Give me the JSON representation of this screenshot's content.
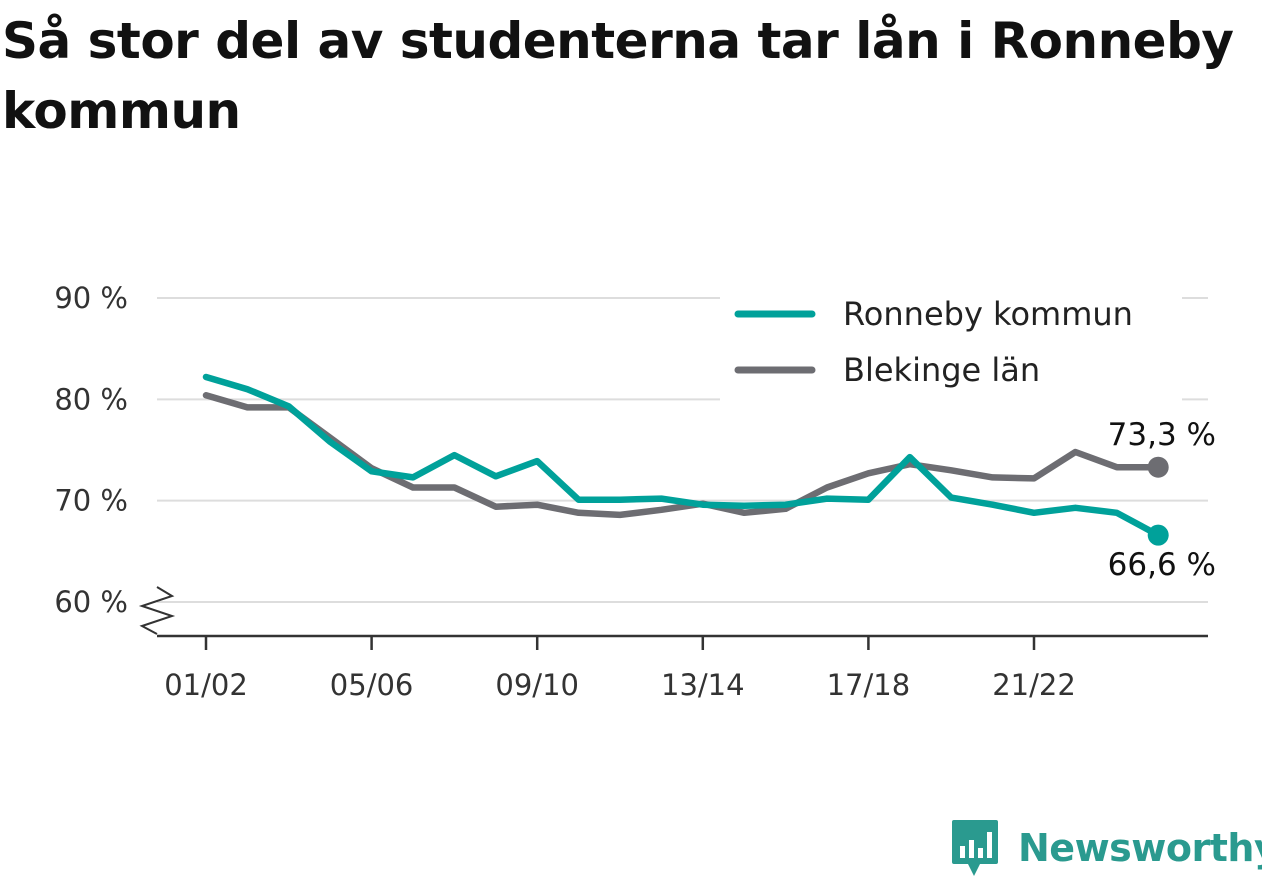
{
  "title": "Så stor del av studenterna tar lån i Ronneby kommun",
  "brand": {
    "name": "Newsworthy",
    "icon": "chart-bubble-icon",
    "color": "#2a9a8f"
  },
  "chart_data": {
    "type": "line",
    "x": [
      "01/02",
      "02/03",
      "03/04",
      "04/05",
      "05/06",
      "06/07",
      "07/08",
      "08/09",
      "09/10",
      "10/11",
      "11/12",
      "12/13",
      "13/14",
      "14/15",
      "15/16",
      "16/17",
      "17/18",
      "18/19",
      "19/20",
      "20/21",
      "21/22",
      "22/23",
      "23/24",
      "24/25"
    ],
    "x_ticks": [
      "01/02",
      "05/06",
      "09/10",
      "13/14",
      "17/18",
      "21/22"
    ],
    "y_ticks": [
      {
        "value": 60,
        "label": "60 %"
      },
      {
        "value": 70,
        "label": "70 %"
      },
      {
        "value": 80,
        "label": "80 %"
      },
      {
        "value": 90,
        "label": "90 %"
      }
    ],
    "ylim": [
      56.7,
      90
    ],
    "y_axis_break": true,
    "grid": "horizontal",
    "legend_position": "top-right",
    "series": [
      {
        "name": "Ronneby kommun",
        "color": "#00a19a",
        "values": [
          82.2,
          81.0,
          79.3,
          75.8,
          72.9,
          72.3,
          74.5,
          72.4,
          73.9,
          70.1,
          70.1,
          70.2,
          69.6,
          69.5,
          69.6,
          70.2,
          70.1,
          74.3,
          70.3,
          69.6,
          68.8,
          69.3,
          68.8,
          66.6
        ],
        "end_label": "66,6 %"
      },
      {
        "name": "Blekinge län",
        "color": "#6d6d72",
        "values": [
          80.4,
          79.2,
          79.2,
          76.2,
          73.2,
          71.3,
          71.3,
          69.4,
          69.6,
          68.8,
          68.6,
          69.1,
          69.7,
          68.8,
          69.2,
          71.3,
          72.7,
          73.6,
          73.0,
          72.3,
          72.2,
          74.8,
          73.3,
          73.3
        ],
        "end_label": "73,3 %"
      }
    ]
  }
}
